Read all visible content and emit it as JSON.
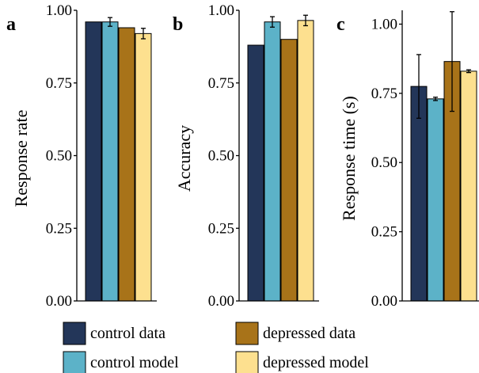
{
  "legend": {
    "items": [
      {
        "label": "control data",
        "color": "#233659"
      },
      {
        "label": "control model",
        "color": "#5cb2c8"
      },
      {
        "label": "depressed data",
        "color": "#a87319"
      },
      {
        "label": "depressed model",
        "color": "#fde08f"
      }
    ]
  },
  "chart_data": [
    {
      "panel": "a",
      "type": "bar",
      "ylabel": "Response rate",
      "ylim": [
        0,
        1
      ],
      "yticks": [
        "0.00",
        "0.25",
        "0.50",
        "0.75",
        "1.00"
      ],
      "grid": false,
      "series": [
        {
          "name": "control data",
          "value": 0.96,
          "error": null
        },
        {
          "name": "control model",
          "value": 0.96,
          "error": 0.015
        },
        {
          "name": "depressed data",
          "value": 0.94,
          "error": null
        },
        {
          "name": "depressed model",
          "value": 0.92,
          "error": 0.018
        }
      ]
    },
    {
      "panel": "b",
      "type": "bar",
      "ylabel": "Accuracy",
      "ylim": [
        0,
        1
      ],
      "yticks": [
        "0.00",
        "0.25",
        "0.50",
        "0.75",
        "1.00"
      ],
      "grid": false,
      "series": [
        {
          "name": "control data",
          "value": 0.88,
          "error": null
        },
        {
          "name": "control model",
          "value": 0.96,
          "error": 0.018
        },
        {
          "name": "depressed data",
          "value": 0.9,
          "error": null
        },
        {
          "name": "depressed model",
          "value": 0.965,
          "error": 0.018
        }
      ]
    },
    {
      "panel": "c",
      "type": "bar",
      "ylabel": "Response time (s)",
      "ylim": [
        0,
        1.05
      ],
      "yticks": [
        "0.00",
        "0.25",
        "0.50",
        "0.75",
        "1.00"
      ],
      "grid": false,
      "series": [
        {
          "name": "control data",
          "value": 0.775,
          "error": 0.115
        },
        {
          "name": "control model",
          "value": 0.73,
          "error": 0.006
        },
        {
          "name": "depressed data",
          "value": 0.865,
          "error": 0.18
        },
        {
          "name": "depressed model",
          "value": 0.83,
          "error": 0.005
        }
      ]
    }
  ]
}
